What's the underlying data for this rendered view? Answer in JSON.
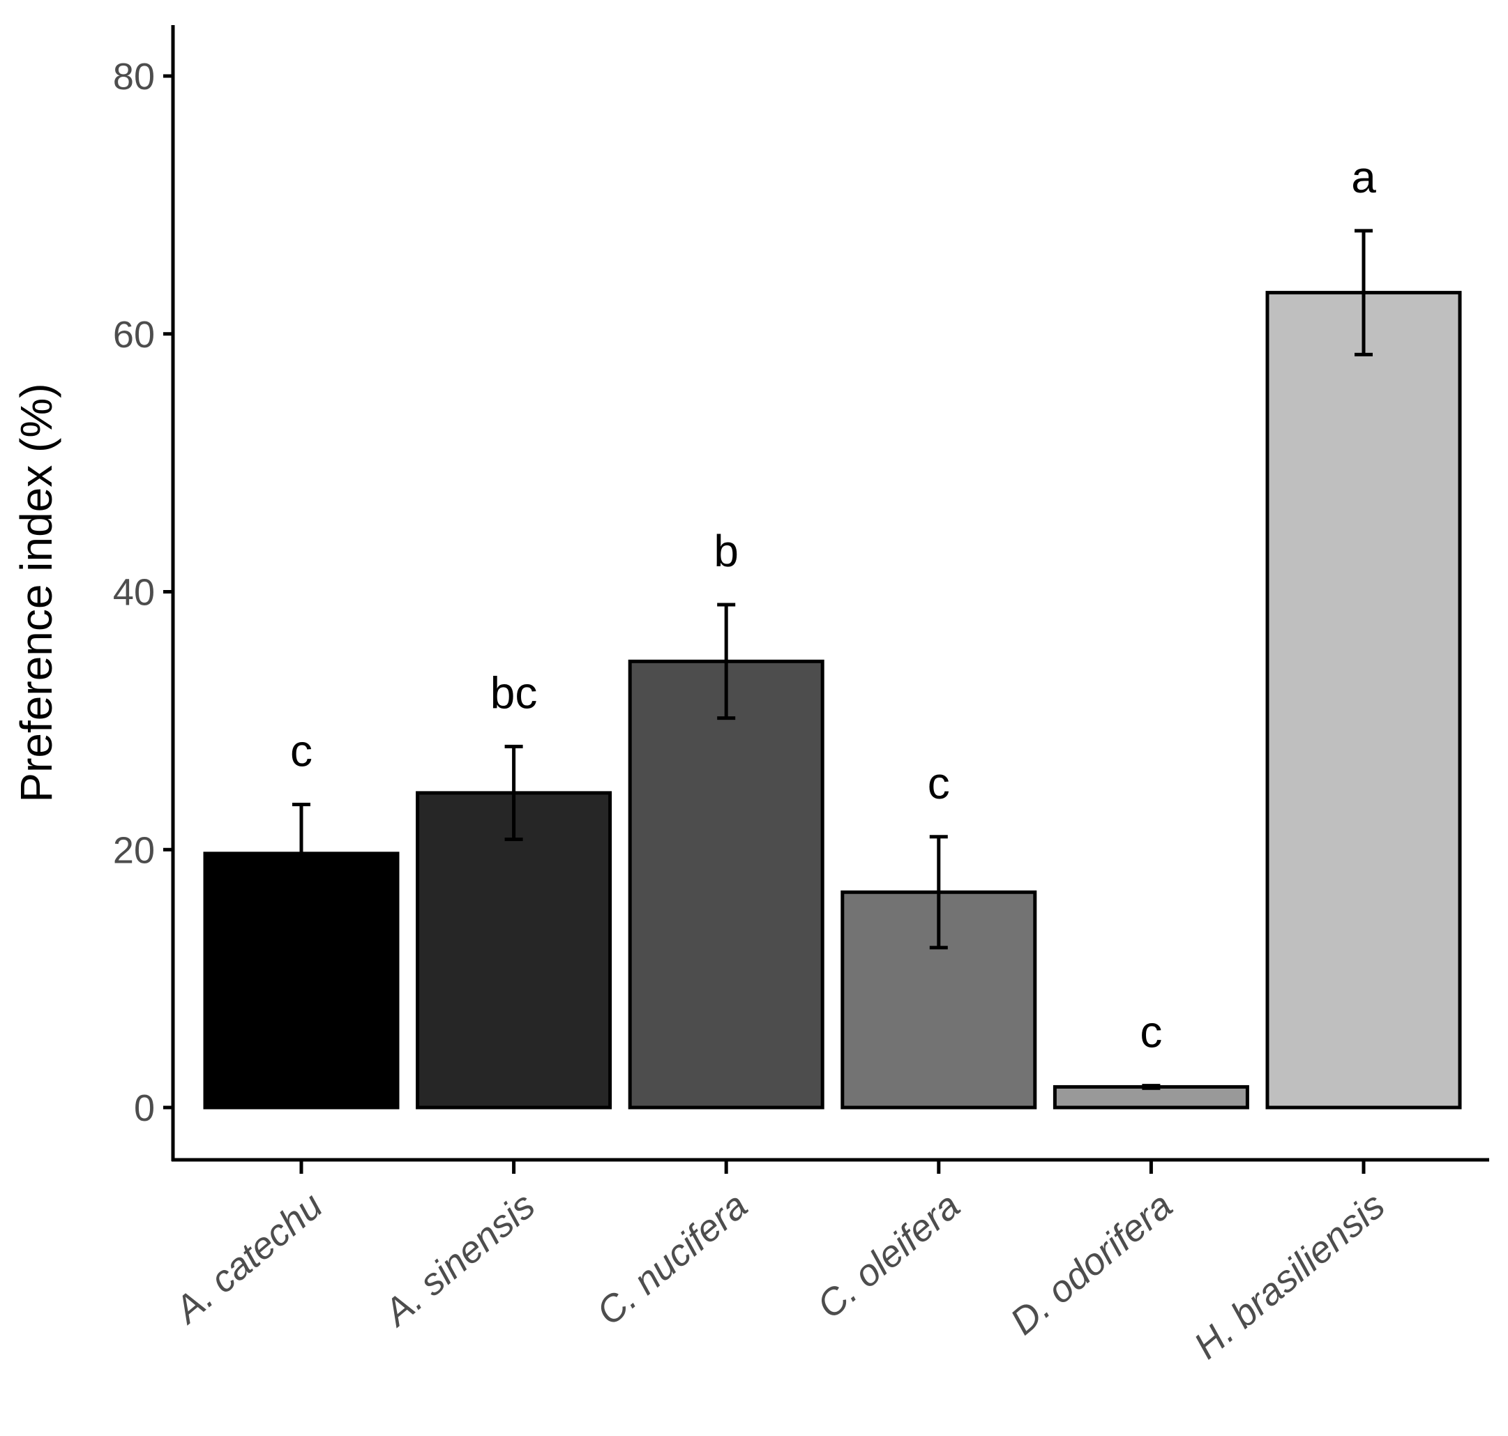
{
  "chart_data": {
    "type": "bar",
    "title": "",
    "xlabel": "",
    "ylabel": "Preference index (%)",
    "ylim": [
      -4,
      84
    ],
    "yticks": [
      0,
      20,
      40,
      60,
      80
    ],
    "ytick_labels": [
      "0",
      "20",
      "40",
      "60",
      "80"
    ],
    "grid": false,
    "legend": "none",
    "categories": [
      "A. catechu",
      "A. sinensis",
      "C. nucifera",
      "C. oleifera",
      "D. odorifera",
      "H. brasiliensis"
    ],
    "values": [
      19.7,
      24.4,
      34.6,
      16.7,
      1.6,
      63.2
    ],
    "error": [
      3.8,
      3.6,
      4.4,
      4.3,
      0.1,
      4.8
    ],
    "significance_letters": [
      "c",
      "bc",
      "b",
      "c",
      "c",
      "a"
    ],
    "bar_colors": [
      "#000000",
      "#262626",
      "#4d4d4d",
      "#737373",
      "#999999",
      "#bfbfbf"
    ],
    "axis_color": "#000000",
    "tick_label_color": "#4d4d4d"
  }
}
